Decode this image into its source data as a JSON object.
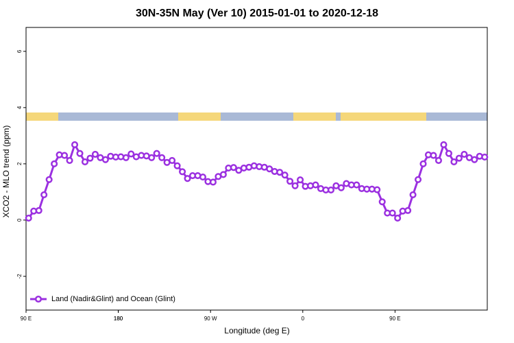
{
  "chart_data": {
    "type": "line",
    "title": "30N-35N May (Ver 10)   2015-01-01 to 2020-12-18",
    "x_label": "Longitude (deg E)",
    "y_label": "XCO2 - MLO trend (ppm)",
    "x": [
      92.5,
      97.5,
      102.5,
      107.5,
      112.5,
      117.5,
      122.5,
      127.5,
      132.5,
      137.5,
      142.5,
      147.5,
      152.5,
      157.5,
      162.5,
      167.5,
      172.5,
      177.5,
      182.5,
      187.5,
      192.5,
      197.5,
      202.5,
      207.5,
      212.5,
      217.5,
      222.5,
      227.5,
      232.5,
      237.5,
      242.5,
      247.5,
      252.5,
      257.5,
      262.5,
      267.5,
      272.5,
      277.5,
      282.5,
      287.5,
      292.5,
      297.5,
      302.5,
      307.5,
      312.5,
      317.5,
      322.5,
      327.5,
      332.5,
      337.5,
      342.5,
      347.5,
      352.5,
      357.5,
      362.5,
      367.5,
      372.5,
      377.5,
      382.5,
      387.5,
      392.5,
      397.5,
      402.5,
      407.5,
      412.5,
      417.5,
      422.5,
      427.5,
      432.5,
      437.5,
      442.5,
      447.5,
      452.5,
      457.5,
      462.5,
      467.5,
      472.5,
      477.5,
      482.5,
      487.5,
      492.5,
      497.5,
      502.5,
      507.5,
      512.5,
      517.5,
      522.5,
      527.5,
      532.5,
      537.5
    ],
    "series": [
      {
        "name": "Land (Nadir&Glint) and Ocean (Glint)",
        "color": "#9b30e0",
        "values": [
          0.07,
          0.32,
          0.34,
          0.9,
          1.44,
          2.0,
          2.32,
          2.3,
          2.12,
          2.68,
          2.37,
          2.07,
          2.2,
          2.34,
          2.22,
          2.15,
          2.27,
          2.24,
          2.25,
          2.22,
          2.35,
          2.25,
          2.3,
          2.28,
          2.22,
          2.37,
          2.22,
          2.05,
          2.12,
          1.93,
          1.72,
          1.48,
          1.58,
          1.58,
          1.53,
          1.37,
          1.35,
          1.55,
          1.62,
          1.85,
          1.87,
          1.77,
          1.85,
          1.88,
          1.93,
          1.9,
          1.88,
          1.82,
          1.73,
          1.7,
          1.6,
          1.38,
          1.22,
          1.43,
          1.2,
          1.22,
          1.25,
          1.12,
          1.07,
          1.07,
          1.22,
          1.15,
          1.3,
          1.25,
          1.25,
          1.12,
          1.1,
          1.1,
          1.08,
          0.65,
          0.25,
          0.25,
          0.07,
          0.32,
          0.34,
          0.9,
          1.44,
          2.0,
          2.32,
          2.3,
          2.12,
          2.68,
          2.37,
          2.07,
          2.2,
          2.34,
          2.22,
          2.15,
          2.27,
          2.24
        ]
      }
    ],
    "xlim": [
      90,
      540
    ],
    "xticks": [
      {
        "value": 90,
        "label": "90 E"
      },
      180,
      {
        "value": 270,
        "label": "90 W"
      },
      {
        "value": 360,
        "label": "0"
      },
      {
        "value": 450,
        "label": "90 E"
      },
      180
    ],
    "ylim": [
      -3.2,
      6.85
    ],
    "yticks": [
      -2,
      0,
      2,
      4,
      6
    ],
    "legend": "lower left"
  }
}
